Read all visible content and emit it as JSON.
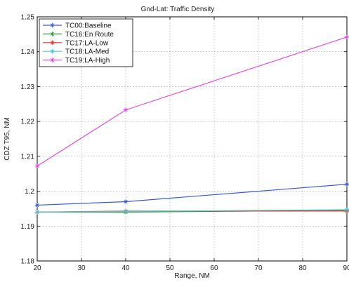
{
  "chart_data": {
    "type": "line",
    "title": "Gnd-Lat: Traffic Density",
    "xlabel": "Range, NM",
    "ylabel": "CDZ T95, NM",
    "xlim": [
      20,
      90
    ],
    "ylim": [
      1.18,
      1.25
    ],
    "x_ticks": [
      "20",
      "30",
      "40",
      "50",
      "60",
      "70",
      "80",
      "90"
    ],
    "y_ticks": [
      "1.18",
      "1.19",
      "1.2",
      "1.21",
      "1.22",
      "1.23",
      "1.24",
      "1.25"
    ],
    "grid": true,
    "legend_position": "top-left",
    "x": [
      20,
      40,
      90
    ],
    "series": [
      {
        "name": "TC00:Baseline",
        "color": "#3b5bd6",
        "marker": "star",
        "values": [
          1.196,
          1.197,
          1.202
        ]
      },
      {
        "name": "TC16:En Route",
        "color": "#2e9e3e",
        "marker": "star",
        "values": [
          1.194,
          1.194,
          1.1945
        ]
      },
      {
        "name": "TC17:LA-Low",
        "color": "#e8342c",
        "marker": "star",
        "values": [
          1.194,
          1.1943,
          1.1943
        ]
      },
      {
        "name": "TC18:LA-Med",
        "color": "#4fc3d6",
        "marker": "star",
        "values": [
          1.194,
          1.1942,
          1.1947
        ]
      },
      {
        "name": "TC19:LA-High",
        "color": "#e04ee0",
        "marker": "star",
        "values": [
          1.2072,
          1.2233,
          1.2442
        ]
      }
    ]
  }
}
